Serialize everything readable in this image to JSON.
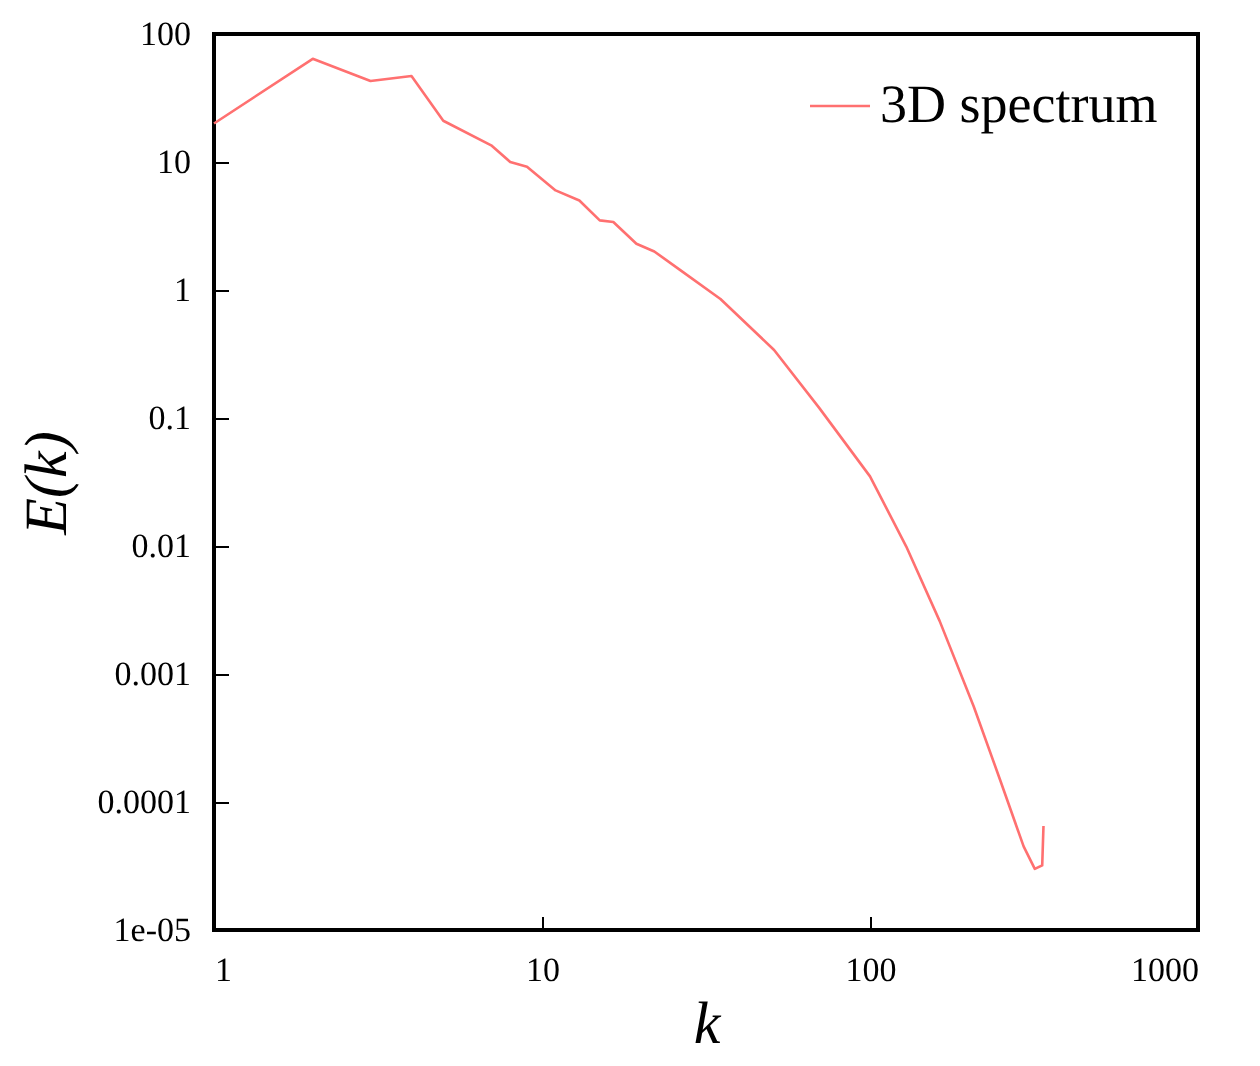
{
  "chart_data": {
    "type": "line",
    "xlabel": "k",
    "ylabel": "E(k)",
    "log": "xy",
    "legend": "top right",
    "marker": "none",
    "line_style": "solid",
    "xlim": [
      1,
      1000
    ],
    "xticks": [
      1,
      10,
      100,
      1000
    ],
    "ylim": [
      1e-05,
      100
    ],
    "yticks": [
      100,
      10,
      1,
      0.1,
      0.01,
      0.001,
      0.0001,
      {
        "value": 1e-05,
        "label": "1e-05"
      }
    ],
    "series": [
      {
        "name": "3D spectrum",
        "color": "#ff7070",
        "x": [
          1,
          2,
          3,
          4,
          5,
          7,
          8,
          9,
          11,
          13,
          15,
          16.5,
          19.4,
          22,
          26.4,
          35,
          51,
          70,
          100,
          129,
          163,
          207,
          249,
          294,
          318,
          335,
          338
        ],
        "values": [
          20,
          64,
          43,
          47,
          21,
          13.5,
          10,
          9.2,
          6,
          5,
          3.5,
          3.4,
          2.3,
          2,
          1.43,
          0.85,
          0.34,
          0.12,
          0.035,
          0.0099,
          0.0026,
          0.00056,
          0.00015,
          4.5e-05,
          3e-05,
          3.2e-05,
          6.5e-05
        ]
      }
    ]
  }
}
